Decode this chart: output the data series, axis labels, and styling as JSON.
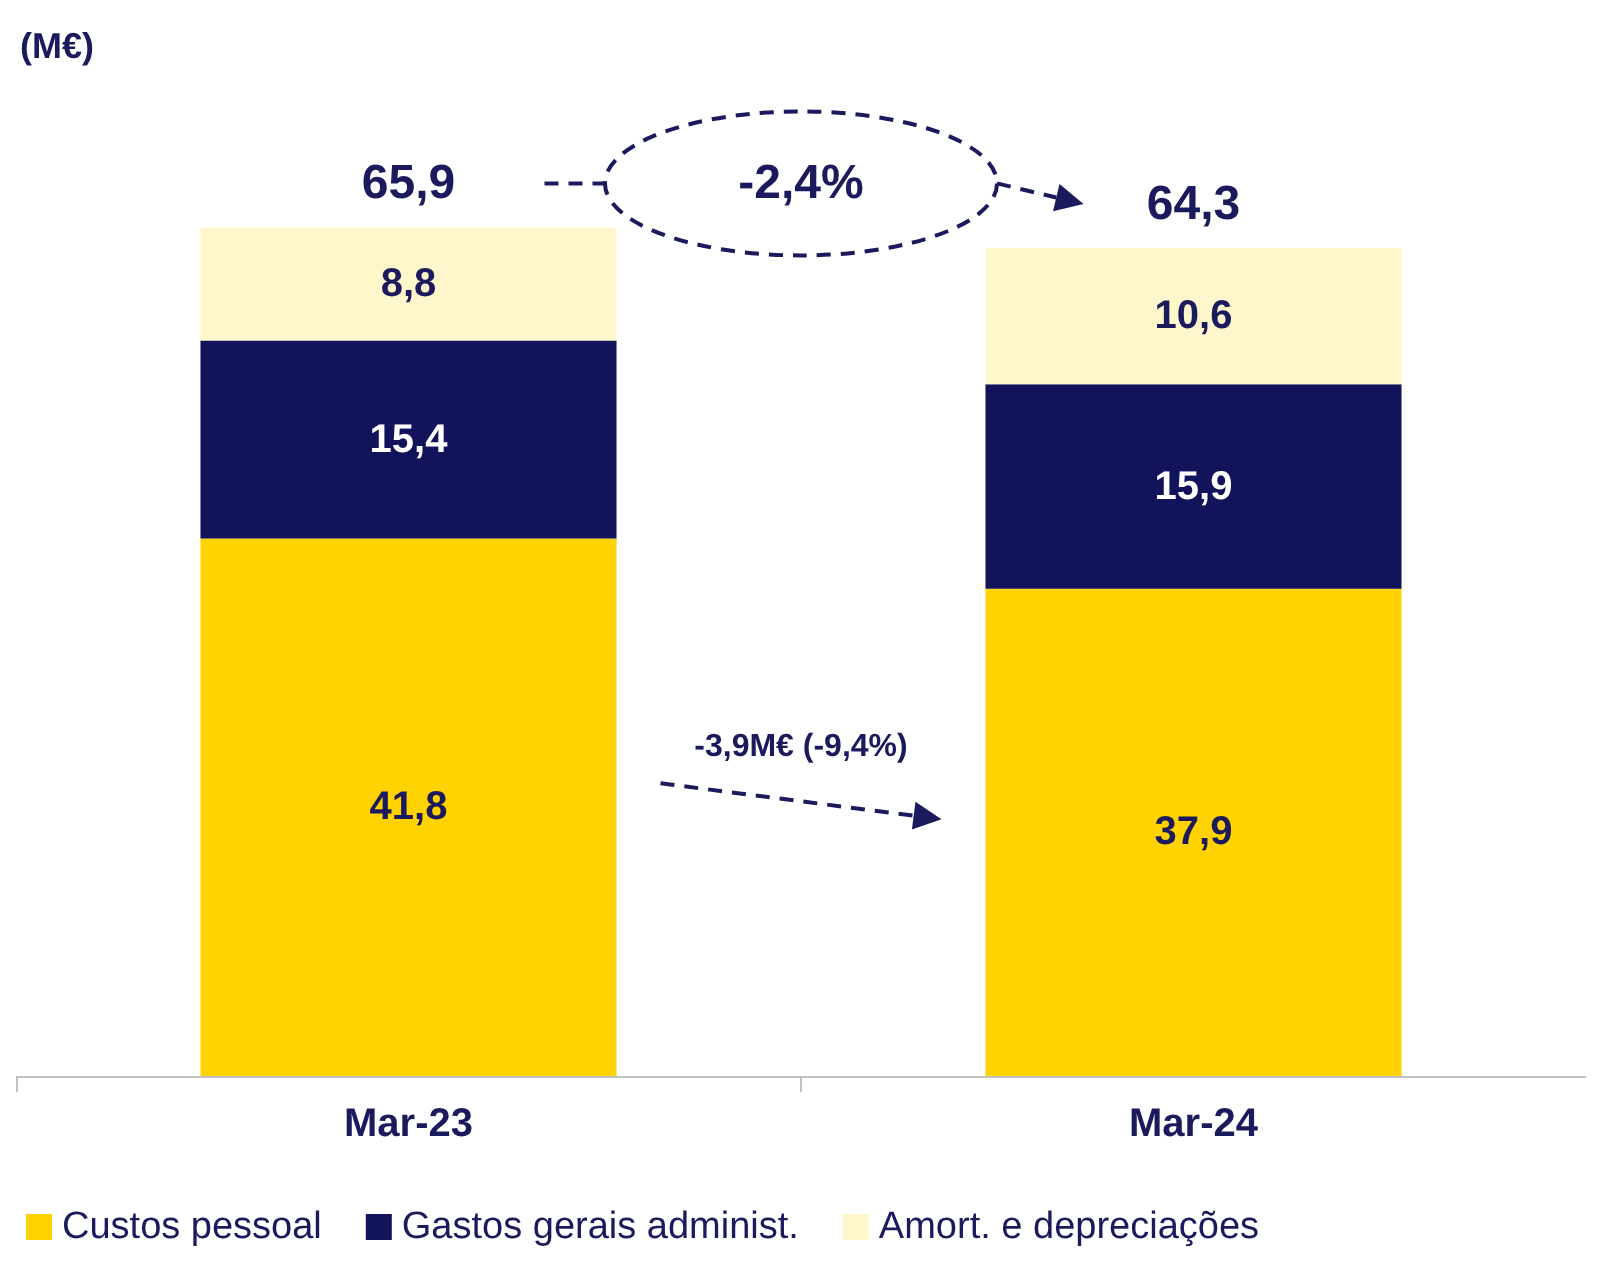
{
  "chart_data": {
    "type": "bar",
    "ylabel": "(M€)",
    "categories": [
      "Mar-23",
      "Mar-24"
    ],
    "stacked": true,
    "legend": "bottom",
    "grid": false,
    "series": [
      {
        "name": "Custos pessoal",
        "color": "#ffd200",
        "values": [
          41.8,
          37.9
        ],
        "value_labels": [
          "41,8",
          "37,9"
        ]
      },
      {
        "name": "Gastos gerais administ.",
        "color": "#13135b",
        "values": [
          15.4,
          15.9
        ],
        "value_labels": [
          "15,4",
          "15,9"
        ]
      },
      {
        "name": "Amort. e depreciações",
        "color": "#fff6cc",
        "values": [
          8.8,
          10.6
        ],
        "value_labels": [
          "8,8",
          "10,6"
        ]
      }
    ],
    "totals": [
      "65,9",
      "64,3"
    ],
    "annotations": [
      "-2,4%",
      "-3,9M€ (-9,4%)"
    ]
  }
}
